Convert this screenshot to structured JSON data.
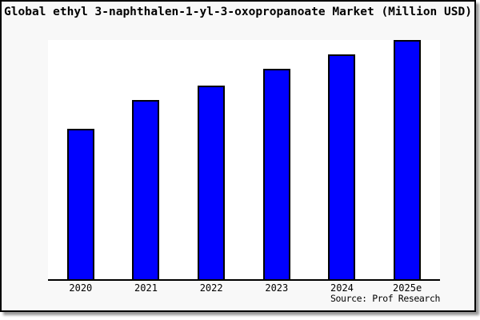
{
  "chart_data": {
    "type": "bar",
    "title": "Global ethyl 3-naphthalen-1-yl-3-oxopropanoate Market (Million USD)",
    "categories": [
      "2020",
      "2021",
      "2022",
      "2023",
      "2024",
      "2025e"
    ],
    "values": [
      63,
      75,
      81,
      88,
      94,
      100
    ],
    "values_note": "relative bar heights as percent of tallest (2025e) bar; no numeric y-axis is shown in the image",
    "xlabel": "",
    "ylabel": "",
    "ylim": [
      0,
      100
    ],
    "grid": false,
    "legend": false,
    "source": "Source: Prof Research"
  },
  "colors": {
    "bar_fill": "#0000ff",
    "bar_edge": "#000000",
    "plot_bg": "#ffffff",
    "window_bg": "#f8f8f8",
    "frame": "#000000",
    "shadow": "#999999",
    "text": "#000000"
  }
}
